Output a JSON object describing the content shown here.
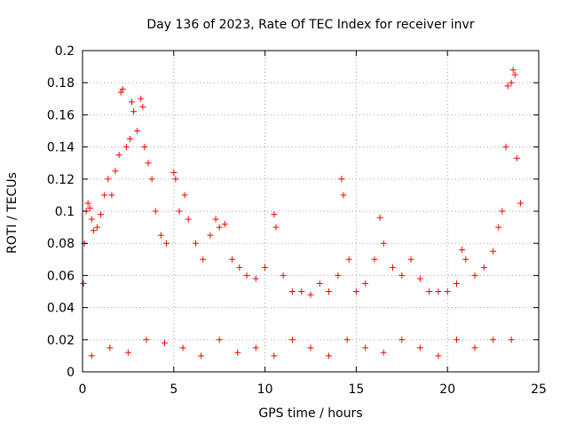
{
  "chart_data": {
    "type": "scatter",
    "title": "Day 136 of 2023, Rate Of TEC Index for receiver invr",
    "xlabel": "GPS time / hours",
    "ylabel": "ROTI / TECUs",
    "xlim": [
      0,
      25
    ],
    "ylim": [
      0,
      0.2
    ],
    "x_ticks": [
      0,
      5,
      10,
      15,
      20,
      25
    ],
    "x_tick_labels": [
      "0",
      "5",
      "10",
      "15",
      "20",
      "25"
    ],
    "y_ticks": [
      0,
      0.02,
      0.04,
      0.06,
      0.08,
      0.1,
      0.12,
      0.14,
      0.16,
      0.18,
      0.2
    ],
    "y_tick_labels": [
      "0",
      "0.02",
      "0.04",
      "0.06",
      "0.08",
      "0.1",
      "0.12",
      "0.14",
      "0.16",
      "0.18",
      "0.2"
    ],
    "grid": true,
    "marker": "+",
    "marker_color": "#ff0000",
    "series": [
      {
        "name": "ROTI",
        "points": [
          [
            0.05,
            0.055
          ],
          [
            0.1,
            0.08
          ],
          [
            0.2,
            0.1
          ],
          [
            0.3,
            0.105
          ],
          [
            0.4,
            0.102
          ],
          [
            0.5,
            0.095
          ],
          [
            0.6,
            0.088
          ],
          [
            0.8,
            0.09
          ],
          [
            1.0,
            0.098
          ],
          [
            1.2,
            0.11
          ],
          [
            1.4,
            0.12
          ],
          [
            1.6,
            0.11
          ],
          [
            1.8,
            0.125
          ],
          [
            2.0,
            0.135
          ],
          [
            2.1,
            0.174
          ],
          [
            2.2,
            0.176
          ],
          [
            2.4,
            0.14
          ],
          [
            2.6,
            0.145
          ],
          [
            2.7,
            0.168
          ],
          [
            2.8,
            0.162
          ],
          [
            3.0,
            0.15
          ],
          [
            3.2,
            0.17
          ],
          [
            3.3,
            0.165
          ],
          [
            3.4,
            0.14
          ],
          [
            3.6,
            0.13
          ],
          [
            3.8,
            0.12
          ],
          [
            4.0,
            0.1
          ],
          [
            4.3,
            0.085
          ],
          [
            4.6,
            0.08
          ],
          [
            5.0,
            0.124
          ],
          [
            5.1,
            0.12
          ],
          [
            5.3,
            0.1
          ],
          [
            5.6,
            0.11
          ],
          [
            5.8,
            0.095
          ],
          [
            6.2,
            0.08
          ],
          [
            6.6,
            0.07
          ],
          [
            7.0,
            0.085
          ],
          [
            7.3,
            0.095
          ],
          [
            7.5,
            0.09
          ],
          [
            7.8,
            0.092
          ],
          [
            8.2,
            0.07
          ],
          [
            8.6,
            0.065
          ],
          [
            9.0,
            0.06
          ],
          [
            9.5,
            0.058
          ],
          [
            10.0,
            0.065
          ],
          [
            10.5,
            0.098
          ],
          [
            10.6,
            0.09
          ],
          [
            11.0,
            0.06
          ],
          [
            11.5,
            0.05
          ],
          [
            12.0,
            0.05
          ],
          [
            12.5,
            0.048
          ],
          [
            13.0,
            0.055
          ],
          [
            13.5,
            0.05
          ],
          [
            14.0,
            0.06
          ],
          [
            14.2,
            0.12
          ],
          [
            14.3,
            0.11
          ],
          [
            14.6,
            0.07
          ],
          [
            15.0,
            0.05
          ],
          [
            15.5,
            0.055
          ],
          [
            16.0,
            0.07
          ],
          [
            16.3,
            0.096
          ],
          [
            16.5,
            0.08
          ],
          [
            17.0,
            0.065
          ],
          [
            17.5,
            0.06
          ],
          [
            18.0,
            0.07
          ],
          [
            18.5,
            0.058
          ],
          [
            19.0,
            0.05
          ],
          [
            19.5,
            0.05
          ],
          [
            20.0,
            0.05
          ],
          [
            20.5,
            0.055
          ],
          [
            20.8,
            0.076
          ],
          [
            21.0,
            0.07
          ],
          [
            21.5,
            0.06
          ],
          [
            22.0,
            0.065
          ],
          [
            22.5,
            0.075
          ],
          [
            22.8,
            0.09
          ],
          [
            23.0,
            0.1
          ],
          [
            23.2,
            0.14
          ],
          [
            23.3,
            0.178
          ],
          [
            23.5,
            0.18
          ],
          [
            23.6,
            0.188
          ],
          [
            23.7,
            0.185
          ],
          [
            23.8,
            0.133
          ],
          [
            24.0,
            0.105
          ],
          [
            0.5,
            0.01
          ],
          [
            1.5,
            0.015
          ],
          [
            2.5,
            0.012
          ],
          [
            3.5,
            0.02
          ],
          [
            4.5,
            0.018
          ],
          [
            5.5,
            0.015
          ],
          [
            6.5,
            0.01
          ],
          [
            7.5,
            0.02
          ],
          [
            8.5,
            0.012
          ],
          [
            9.5,
            0.015
          ],
          [
            10.5,
            0.01
          ],
          [
            11.5,
            0.02
          ],
          [
            12.5,
            0.015
          ],
          [
            13.5,
            0.01
          ],
          [
            14.5,
            0.02
          ],
          [
            15.5,
            0.015
          ],
          [
            16.5,
            0.012
          ],
          [
            17.5,
            0.02
          ],
          [
            18.5,
            0.015
          ],
          [
            19.5,
            0.01
          ],
          [
            20.5,
            0.02
          ],
          [
            21.5,
            0.015
          ],
          [
            22.5,
            0.02
          ],
          [
            23.5,
            0.02
          ]
        ]
      }
    ]
  }
}
